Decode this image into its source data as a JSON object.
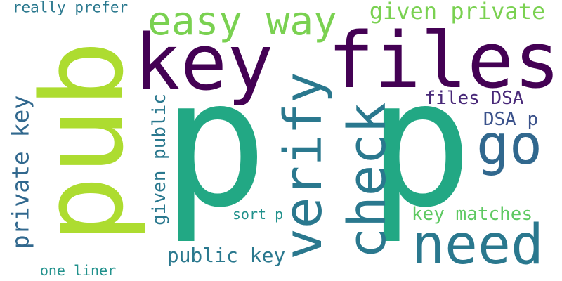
{
  "words": [
    {
      "key": "pub",
      "text": "pub",
      "color": "#addc30",
      "orientation": "vertical"
    },
    {
      "key": "p_large_left",
      "text": "p",
      "color": "#22a884",
      "orientation": "horizontal"
    },
    {
      "key": "p_large_right",
      "text": "p",
      "color": "#22a884",
      "orientation": "horizontal"
    },
    {
      "key": "key",
      "text": "key",
      "color": "#440154",
      "orientation": "horizontal"
    },
    {
      "key": "files",
      "text": "files",
      "color": "#440154",
      "orientation": "horizontal"
    },
    {
      "key": "easy_way",
      "text": "easy way",
      "color": "#7ad151",
      "orientation": "horizontal"
    },
    {
      "key": "given_private",
      "text": "given private",
      "color": "#7ad151",
      "orientation": "horizontal"
    },
    {
      "key": "really_prefer",
      "text": "really prefer",
      "color": "#2a788e",
      "orientation": "horizontal"
    },
    {
      "key": "verify",
      "text": "verify",
      "color": "#2a788e",
      "orientation": "vertical"
    },
    {
      "key": "check",
      "text": "check",
      "color": "#2a788e",
      "orientation": "vertical"
    },
    {
      "key": "go",
      "text": "go",
      "color": "#31688e",
      "orientation": "horizontal"
    },
    {
      "key": "need",
      "text": "need",
      "color": "#2a788e",
      "orientation": "horizontal"
    },
    {
      "key": "files_dsa",
      "text": "files DSA",
      "color": "#482878",
      "orientation": "horizontal"
    },
    {
      "key": "dsa_p",
      "text": "DSA p",
      "color": "#3b528b",
      "orientation": "horizontal"
    },
    {
      "key": "private_key",
      "text": "private key",
      "color": "#31688e",
      "orientation": "vertical"
    },
    {
      "key": "given_public",
      "text": "given public",
      "color": "#2a788e",
      "orientation": "vertical"
    },
    {
      "key": "key_matches",
      "text": "key matches",
      "color": "#5ec962",
      "orientation": "horizontal"
    },
    {
      "key": "sort_p",
      "text": "sort p",
      "color": "#21918c",
      "orientation": "horizontal"
    },
    {
      "key": "public_key",
      "text": "public key",
      "color": "#2a788e",
      "orientation": "horizontal"
    },
    {
      "key": "one_liner",
      "text": "one liner",
      "color": "#21918c",
      "orientation": "horizontal"
    }
  ]
}
